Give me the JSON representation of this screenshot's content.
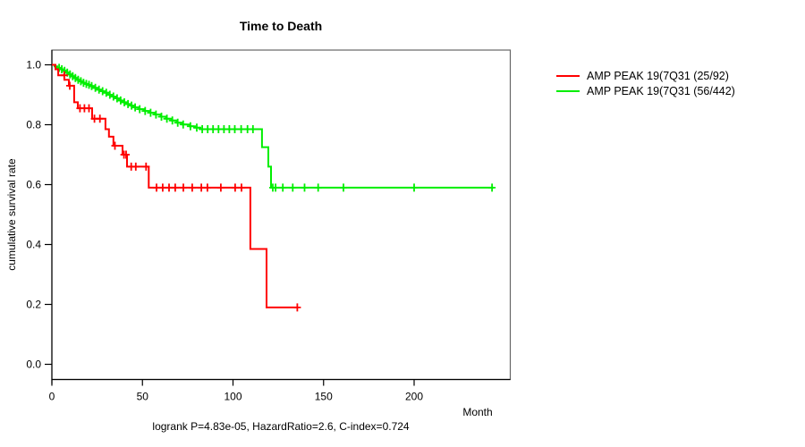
{
  "chart_data": {
    "type": "line",
    "chart_kind": "kaplan_meier_step_survival",
    "title": "Time to Death",
    "xlabel": "Month",
    "ylabel": "cumulative survival rate",
    "footer": "logrank P=4.83e-05, HazardRatio=2.6, C-index=0.724",
    "xlim": [
      0,
      253
    ],
    "ylim": [
      0.0,
      1.0
    ],
    "x_ticks": [
      0,
      50,
      100,
      150,
      200
    ],
    "y_ticks": [
      0.0,
      0.2,
      0.4,
      0.6,
      0.8,
      1.0
    ],
    "grid": false,
    "legend_position": "right-outside",
    "axis_color": "#000000",
    "box_color": "#666666",
    "series": [
      {
        "name": "AMP PEAK 19(7Q31 (25/92)",
        "color": "#FF0000",
        "start": [
          0,
          1.0
        ],
        "steps": [
          [
            2,
            0.985
          ],
          [
            3.5,
            0.965
          ],
          [
            6.9,
            0.95
          ],
          [
            9.4,
            0.93
          ],
          [
            12.3,
            0.875
          ],
          [
            14.3,
            0.855
          ],
          [
            22.2,
            0.82
          ],
          [
            29.6,
            0.785
          ],
          [
            31.5,
            0.76
          ],
          [
            34,
            0.73
          ],
          [
            39,
            0.7
          ],
          [
            41.5,
            0.66
          ],
          [
            53.5,
            0.59
          ],
          [
            109.6,
            0.385
          ],
          [
            118.5,
            0.19
          ]
        ],
        "end_month": 135.8,
        "censor_months": [
          6.8,
          9.9,
          15.5,
          18,
          20.5,
          23.5,
          26.5,
          34.8,
          39.8,
          41,
          43.8,
          46.3,
          52,
          57.8,
          61.2,
          64.7,
          68.1,
          72.6,
          77.5,
          82.5,
          85.9,
          93.3,
          101.2,
          104.7,
          135.5
        ]
      },
      {
        "name": "AMP PEAK 19(7Q31 (56/442)",
        "color": "#00EE00",
        "start": [
          0,
          1.0
        ],
        "steps": [
          [
            1.5,
            0.995
          ],
          [
            3,
            0.99
          ],
          [
            4.5,
            0.985
          ],
          [
            6,
            0.98
          ],
          [
            7.5,
            0.974
          ],
          [
            9,
            0.968
          ],
          [
            10.5,
            0.962
          ],
          [
            12,
            0.956
          ],
          [
            13.5,
            0.95
          ],
          [
            15,
            0.945
          ],
          [
            16.5,
            0.94
          ],
          [
            18,
            0.936
          ],
          [
            19.5,
            0.933
          ],
          [
            21,
            0.929
          ],
          [
            23,
            0.923
          ],
          [
            25,
            0.917
          ],
          [
            27,
            0.912
          ],
          [
            29,
            0.907
          ],
          [
            31,
            0.9
          ],
          [
            33,
            0.894
          ],
          [
            35,
            0.888
          ],
          [
            37,
            0.881
          ],
          [
            39,
            0.875
          ],
          [
            41,
            0.869
          ],
          [
            43,
            0.864
          ],
          [
            45,
            0.858
          ],
          [
            48,
            0.852
          ],
          [
            51,
            0.846
          ],
          [
            54,
            0.84
          ],
          [
            57,
            0.834
          ],
          [
            60,
            0.827
          ],
          [
            63,
            0.82
          ],
          [
            66,
            0.814
          ],
          [
            69,
            0.807
          ],
          [
            72,
            0.801
          ],
          [
            76,
            0.795
          ],
          [
            79,
            0.79
          ],
          [
            82,
            0.785
          ],
          [
            116,
            0.725
          ],
          [
            119.5,
            0.66
          ],
          [
            121,
            0.59
          ]
        ],
        "end_month": 244,
        "censor_months": [
          4,
          5.5,
          7,
          8.5,
          10,
          11.5,
          13,
          14.5,
          16,
          17.5,
          19,
          20.5,
          22,
          24,
          26,
          28,
          30,
          32,
          34,
          36,
          38,
          40,
          42,
          44,
          46,
          48.5,
          51.5,
          54.5,
          57.5,
          60.5,
          63.5,
          66.5,
          69.5,
          72.5,
          76.5,
          80,
          83,
          86,
          89,
          92,
          95,
          98,
          101,
          104.5,
          108,
          111,
          122,
          123.5,
          127.5,
          133,
          139.5,
          147,
          161,
          200,
          243
        ]
      }
    ]
  }
}
